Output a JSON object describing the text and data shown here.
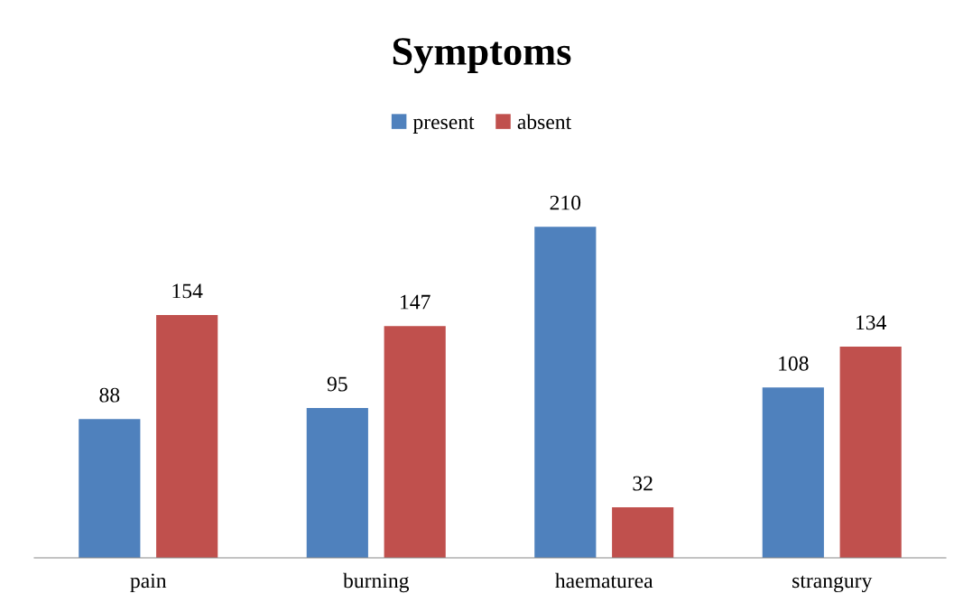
{
  "chart_data": {
    "type": "bar",
    "title": "Symptoms",
    "categories": [
      "pain",
      "burning",
      "haematurea",
      "strangury"
    ],
    "series": [
      {
        "name": "present",
        "color": "#4f81bd",
        "values": [
          88,
          95,
          210,
          108
        ]
      },
      {
        "name": "absent",
        "color": "#c0504d",
        "values": [
          154,
          147,
          32,
          134
        ]
      }
    ],
    "data_labels": true,
    "legend": "top",
    "grid": false
  }
}
